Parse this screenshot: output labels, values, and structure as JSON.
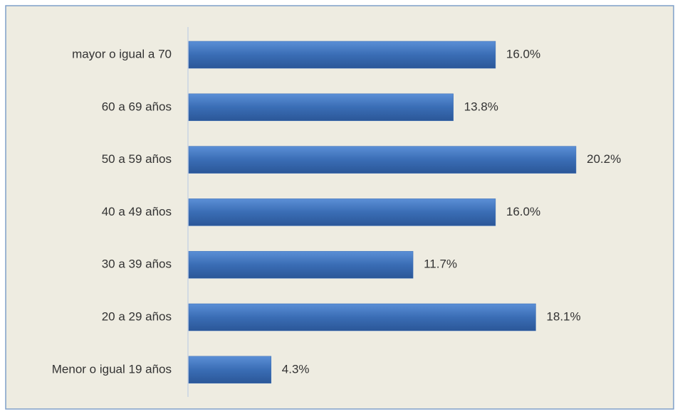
{
  "chart_data": {
    "type": "bar",
    "orientation": "horizontal",
    "categories": [
      "mayor o igual a 70",
      "60 a 69 años",
      "50 a 59 años",
      "40 a 49 años",
      "30 a 39 años",
      "20 a 29 años",
      "Menor o igual 19 años"
    ],
    "values": [
      16.0,
      13.8,
      20.2,
      16.0,
      11.7,
      18.1,
      4.3
    ],
    "value_labels": [
      "16.0%",
      "13.8%",
      "20.2%",
      "16.0%",
      "11.7%",
      "18.1%",
      "4.3%"
    ],
    "color": "#3a6db5"
  }
}
